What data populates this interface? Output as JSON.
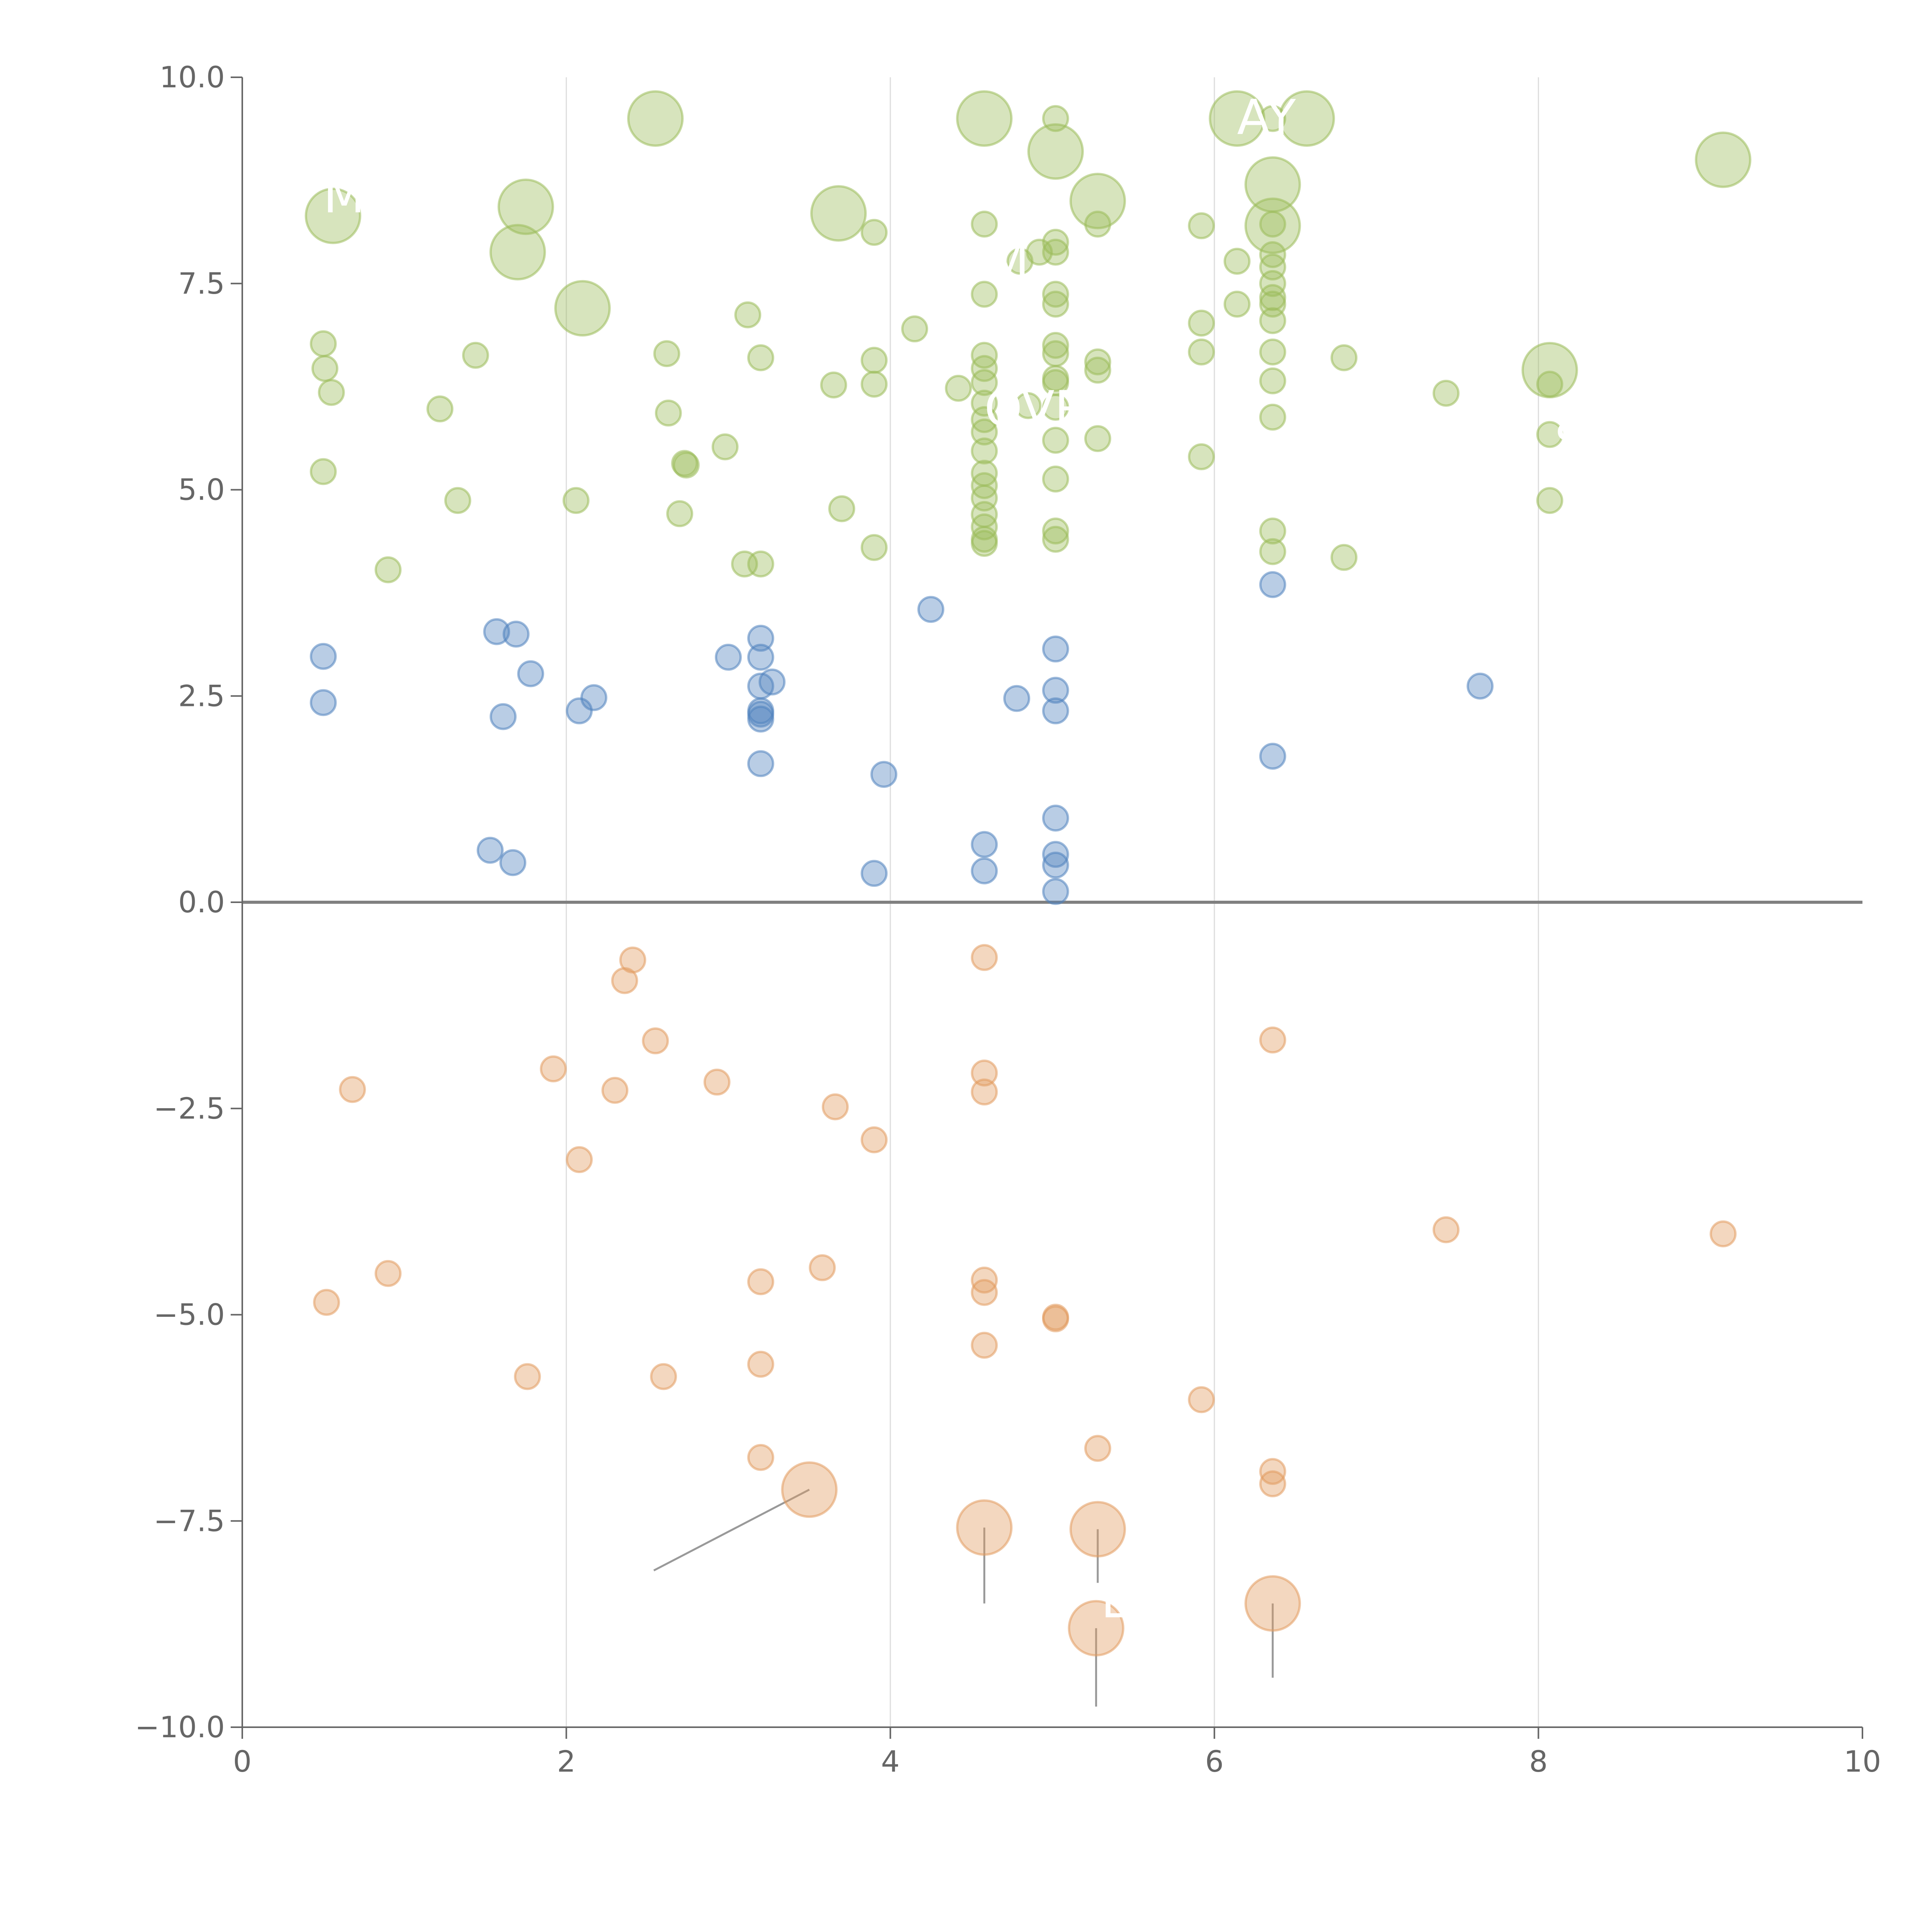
{
  "chart_data": {
    "type": "scatter",
    "title": "",
    "xlabel": "",
    "ylabel": "",
    "xlim": [
      0,
      10
    ],
    "ylim": [
      -10,
      10
    ],
    "x_ticks": [
      "0",
      "2",
      "4",
      "6",
      "8",
      "10"
    ],
    "y_ticks": [
      "10.0",
      "7.5",
      "5.0",
      "2.5",
      "0.0",
      "−2.5",
      "−5.0",
      "−7.5",
      "−10.0"
    ],
    "grid": "vertical lines at x = 2, 4, 6, 8",
    "legend": "none",
    "colors": {
      "green": "#9BBB59",
      "blue": "#4F81BD",
      "orange": "#E19A5E",
      "axis": "#666666",
      "zero_line": "#808080",
      "grid": "#DDDDDD"
    },
    "series": [
      {
        "name": "green",
        "points": [
          {
            "x": 0.56,
            "y": 8.32,
            "r": 22
          },
          {
            "x": 1.75,
            "y": 8.43,
            "r": 22
          },
          {
            "x": 1.7,
            "y": 7.88,
            "r": 22
          },
          {
            "x": 2.1,
            "y": 7.2,
            "r": 22
          },
          {
            "x": 2.55,
            "y": 9.5,
            "r": 22
          },
          {
            "x": 3.68,
            "y": 8.35,
            "r": 22
          },
          {
            "x": 4.58,
            "y": 9.5,
            "r": 22
          },
          {
            "x": 5.02,
            "y": 9.1,
            "r": 22
          },
          {
            "x": 5.28,
            "y": 8.5,
            "r": 22
          },
          {
            "x": 6.14,
            "y": 9.5,
            "r": 22
          },
          {
            "x": 6.57,
            "y": 9.5,
            "r": 22
          },
          {
            "x": 6.36,
            "y": 8.7,
            "r": 22
          },
          {
            "x": 6.36,
            "y": 8.2,
            "r": 22
          },
          {
            "x": 8.07,
            "y": 6.45,
            "r": 22
          },
          {
            "x": 9.14,
            "y": 9.0,
            "r": 22
          },
          {
            "x": 0.5,
            "y": 6.77,
            "r": 10
          },
          {
            "x": 0.51,
            "y": 6.47,
            "r": 10
          },
          {
            "x": 0.55,
            "y": 6.18,
            "r": 10
          },
          {
            "x": 0.5,
            "y": 5.22,
            "r": 10
          },
          {
            "x": 0.9,
            "y": 4.03,
            "r": 10
          },
          {
            "x": 1.22,
            "y": 5.98,
            "r": 10
          },
          {
            "x": 1.44,
            "y": 6.63,
            "r": 10
          },
          {
            "x": 1.33,
            "y": 4.87,
            "r": 10
          },
          {
            "x": 2.06,
            "y": 4.87,
            "r": 10
          },
          {
            "x": 2.62,
            "y": 6.65,
            "r": 10
          },
          {
            "x": 2.63,
            "y": 5.93,
            "r": 10
          },
          {
            "x": 2.73,
            "y": 5.32,
            "r": 10
          },
          {
            "x": 2.74,
            "y": 5.3,
            "r": 10
          },
          {
            "x": 2.7,
            "y": 4.71,
            "r": 10
          },
          {
            "x": 2.98,
            "y": 5.52,
            "r": 10
          },
          {
            "x": 3.12,
            "y": 7.12,
            "r": 10
          },
          {
            "x": 3.2,
            "y": 6.6,
            "r": 10
          },
          {
            "x": 3.1,
            "y": 4.1,
            "r": 10
          },
          {
            "x": 3.2,
            "y": 4.1,
            "r": 10
          },
          {
            "x": 3.65,
            "y": 6.27,
            "r": 10
          },
          {
            "x": 3.7,
            "y": 4.77,
            "r": 10
          },
          {
            "x": 3.9,
            "y": 8.12,
            "r": 10
          },
          {
            "x": 3.9,
            "y": 6.57,
            "r": 10
          },
          {
            "x": 3.9,
            "y": 6.28,
            "r": 10
          },
          {
            "x": 3.9,
            "y": 4.3,
            "r": 10
          },
          {
            "x": 4.15,
            "y": 6.95,
            "r": 10
          },
          {
            "x": 4.42,
            "y": 6.23,
            "r": 10
          },
          {
            "x": 4.58,
            "y": 8.22,
            "r": 10
          },
          {
            "x": 4.58,
            "y": 7.37,
            "r": 10
          },
          {
            "x": 4.58,
            "y": 6.63,
            "r": 10
          },
          {
            "x": 4.58,
            "y": 6.47,
            "r": 10
          },
          {
            "x": 4.58,
            "y": 6.3,
            "r": 10
          },
          {
            "x": 4.58,
            "y": 6.05,
            "r": 10
          },
          {
            "x": 4.58,
            "y": 5.85,
            "r": 10
          },
          {
            "x": 4.58,
            "y": 5.7,
            "r": 10
          },
          {
            "x": 4.58,
            "y": 5.47,
            "r": 10
          },
          {
            "x": 4.58,
            "y": 5.2,
            "r": 10
          },
          {
            "x": 4.58,
            "y": 5.05,
            "r": 10
          },
          {
            "x": 4.58,
            "y": 4.9,
            "r": 10
          },
          {
            "x": 4.58,
            "y": 4.7,
            "r": 10
          },
          {
            "x": 4.58,
            "y": 4.55,
            "r": 10
          },
          {
            "x": 4.58,
            "y": 4.4,
            "r": 10
          },
          {
            "x": 4.58,
            "y": 4.35,
            "r": 10
          },
          {
            "x": 4.8,
            "y": 7.77,
            "r": 10
          },
          {
            "x": 4.92,
            "y": 7.88,
            "r": 10
          },
          {
            "x": 4.85,
            "y": 6.02,
            "r": 10
          },
          {
            "x": 5.02,
            "y": 9.5,
            "r": 10
          },
          {
            "x": 5.02,
            "y": 8.0,
            "r": 10
          },
          {
            "x": 5.02,
            "y": 7.88,
            "r": 10
          },
          {
            "x": 5.02,
            "y": 7.37,
            "r": 10
          },
          {
            "x": 5.02,
            "y": 7.25,
            "r": 10
          },
          {
            "x": 5.02,
            "y": 6.75,
            "r": 10
          },
          {
            "x": 5.02,
            "y": 6.65,
            "r": 10
          },
          {
            "x": 5.02,
            "y": 6.35,
            "r": 10
          },
          {
            "x": 5.02,
            "y": 6.3,
            "r": 10
          },
          {
            "x": 5.02,
            "y": 6.0,
            "r": 10
          },
          {
            "x": 5.02,
            "y": 5.6,
            "r": 10
          },
          {
            "x": 5.02,
            "y": 5.13,
            "r": 10
          },
          {
            "x": 5.02,
            "y": 4.5,
            "r": 10
          },
          {
            "x": 5.02,
            "y": 4.4,
            "r": 10
          },
          {
            "x": 5.28,
            "y": 8.22,
            "r": 10
          },
          {
            "x": 5.28,
            "y": 6.55,
            "r": 10
          },
          {
            "x": 5.28,
            "y": 6.45,
            "r": 10
          },
          {
            "x": 5.28,
            "y": 5.62,
            "r": 10
          },
          {
            "x": 5.92,
            "y": 8.2,
            "r": 10
          },
          {
            "x": 5.92,
            "y": 7.02,
            "r": 10
          },
          {
            "x": 5.92,
            "y": 6.67,
            "r": 10
          },
          {
            "x": 5.92,
            "y": 5.4,
            "r": 10
          },
          {
            "x": 6.14,
            "y": 7.77,
            "r": 10
          },
          {
            "x": 6.14,
            "y": 7.25,
            "r": 10
          },
          {
            "x": 6.36,
            "y": 9.5,
            "r": 10
          },
          {
            "x": 6.36,
            "y": 8.22,
            "r": 10
          },
          {
            "x": 6.36,
            "y": 7.85,
            "r": 10
          },
          {
            "x": 6.36,
            "y": 7.7,
            "r": 10
          },
          {
            "x": 6.36,
            "y": 7.5,
            "r": 10
          },
          {
            "x": 6.36,
            "y": 7.33,
            "r": 10
          },
          {
            "x": 6.36,
            "y": 7.25,
            "r": 10
          },
          {
            "x": 6.36,
            "y": 7.05,
            "r": 10
          },
          {
            "x": 6.36,
            "y": 6.67,
            "r": 10
          },
          {
            "x": 6.36,
            "y": 6.32,
            "r": 10
          },
          {
            "x": 6.36,
            "y": 5.88,
            "r": 10
          },
          {
            "x": 6.36,
            "y": 4.5,
            "r": 10
          },
          {
            "x": 6.36,
            "y": 4.25,
            "r": 10
          },
          {
            "x": 6.8,
            "y": 6.6,
            "r": 10
          },
          {
            "x": 6.8,
            "y": 4.18,
            "r": 10
          },
          {
            "x": 7.43,
            "y": 6.17,
            "r": 10
          },
          {
            "x": 8.07,
            "y": 6.28,
            "r": 10
          },
          {
            "x": 8.07,
            "y": 5.67,
            "r": 10
          },
          {
            "x": 8.07,
            "y": 4.87,
            "r": 10
          }
        ]
      },
      {
        "name": "blue",
        "points": [
          {
            "x": 0.5,
            "y": 2.98,
            "r": 10
          },
          {
            "x": 0.5,
            "y": 2.42,
            "r": 10
          },
          {
            "x": 1.57,
            "y": 3.28,
            "r": 10
          },
          {
            "x": 1.69,
            "y": 3.25,
            "r": 10
          },
          {
            "x": 1.78,
            "y": 2.77,
            "r": 10
          },
          {
            "x": 1.61,
            "y": 2.25,
            "r": 10
          },
          {
            "x": 2.08,
            "y": 2.32,
            "r": 10
          },
          {
            "x": 2.17,
            "y": 2.48,
            "r": 10
          },
          {
            "x": 1.53,
            "y": 0.63,
            "r": 10
          },
          {
            "x": 1.67,
            "y": 0.48,
            "r": 10
          },
          {
            "x": 3.0,
            "y": 2.97,
            "r": 10
          },
          {
            "x": 3.2,
            "y": 3.2,
            "r": 10
          },
          {
            "x": 3.2,
            "y": 2.97,
            "r": 10
          },
          {
            "x": 3.2,
            "y": 2.62,
            "r": 10
          },
          {
            "x": 3.27,
            "y": 2.67,
            "r": 10
          },
          {
            "x": 3.2,
            "y": 2.32,
            "r": 10
          },
          {
            "x": 3.2,
            "y": 2.28,
            "r": 10
          },
          {
            "x": 3.2,
            "y": 2.22,
            "r": 10
          },
          {
            "x": 3.2,
            "y": 1.68,
            "r": 10
          },
          {
            "x": 3.9,
            "y": 0.35,
            "r": 10
          },
          {
            "x": 3.96,
            "y": 1.55,
            "r": 10
          },
          {
            "x": 4.25,
            "y": 3.55,
            "r": 10
          },
          {
            "x": 4.58,
            "y": 0.7,
            "r": 10
          },
          {
            "x": 4.58,
            "y": 0.38,
            "r": 10
          },
          {
            "x": 4.78,
            "y": 2.47,
            "r": 10
          },
          {
            "x": 5.02,
            "y": 3.07,
            "r": 10
          },
          {
            "x": 5.02,
            "y": 2.57,
            "r": 10
          },
          {
            "x": 5.02,
            "y": 2.32,
            "r": 10
          },
          {
            "x": 5.02,
            "y": 1.02,
            "r": 10
          },
          {
            "x": 5.02,
            "y": 0.58,
            "r": 10
          },
          {
            "x": 5.02,
            "y": 0.45,
            "r": 10
          },
          {
            "x": 5.02,
            "y": 0.13,
            "r": 10
          },
          {
            "x": 6.36,
            "y": 3.85,
            "r": 10
          },
          {
            "x": 6.36,
            "y": 1.77,
            "r": 10
          },
          {
            "x": 7.64,
            "y": 2.62,
            "r": 10
          }
        ]
      },
      {
        "name": "orange",
        "points": [
          {
            "x": 0.68,
            "y": -2.27,
            "r": 10
          },
          {
            "x": 0.9,
            "y": -4.5,
            "r": 10
          },
          {
            "x": 0.52,
            "y": -4.85,
            "r": 10
          },
          {
            "x": 1.76,
            "y": -5.75,
            "r": 10
          },
          {
            "x": 1.92,
            "y": -2.02,
            "r": 10
          },
          {
            "x": 2.3,
            "y": -2.28,
            "r": 10
          },
          {
            "x": 2.36,
            "y": -0.95,
            "r": 10
          },
          {
            "x": 2.41,
            "y": -0.7,
            "r": 10
          },
          {
            "x": 2.55,
            "y": -1.68,
            "r": 10
          },
          {
            "x": 2.08,
            "y": -3.12,
            "r": 10
          },
          {
            "x": 2.6,
            "y": -5.75,
            "r": 10
          },
          {
            "x": 2.93,
            "y": -2.18,
            "r": 10
          },
          {
            "x": 3.2,
            "y": -4.6,
            "r": 10
          },
          {
            "x": 3.2,
            "y": -5.6,
            "r": 10
          },
          {
            "x": 3.2,
            "y": -6.73,
            "r": 10
          },
          {
            "x": 3.5,
            "y": -7.12,
            "r": 22
          },
          {
            "x": 3.58,
            "y": -4.43,
            "r": 10
          },
          {
            "x": 3.66,
            "y": -2.48,
            "r": 10
          },
          {
            "x": 3.9,
            "y": -2.88,
            "r": 10
          },
          {
            "x": 4.58,
            "y": -0.67,
            "r": 10
          },
          {
            "x": 4.58,
            "y": -2.07,
            "r": 10
          },
          {
            "x": 4.58,
            "y": -2.3,
            "r": 10
          },
          {
            "x": 4.58,
            "y": -4.58,
            "r": 10
          },
          {
            "x": 4.58,
            "y": -4.73,
            "r": 10
          },
          {
            "x": 4.58,
            "y": -5.37,
            "r": 10
          },
          {
            "x": 4.58,
            "y": -7.58,
            "r": 22
          },
          {
            "x": 5.02,
            "y": -5.03,
            "r": 10
          },
          {
            "x": 5.02,
            "y": -5.05,
            "r": 10
          },
          {
            "x": 5.28,
            "y": -6.62,
            "r": 10
          },
          {
            "x": 5.28,
            "y": -7.6,
            "r": 22
          },
          {
            "x": 5.27,
            "y": -8.8,
            "r": 22
          },
          {
            "x": 5.92,
            "y": -6.03,
            "r": 10
          },
          {
            "x": 6.36,
            "y": -1.67,
            "r": 10
          },
          {
            "x": 6.36,
            "y": -6.9,
            "r": 10
          },
          {
            "x": 6.36,
            "y": -7.05,
            "r": 10
          },
          {
            "x": 6.36,
            "y": -8.5,
            "r": 22
          },
          {
            "x": 7.43,
            "y": -3.97,
            "r": 10
          },
          {
            "x": 9.14,
            "y": -4.02,
            "r": 10
          }
        ]
      }
    ],
    "connector_lines": [
      {
        "from": [
          3.5,
          -7.12
        ],
        "to": [
          2.54,
          -8.1
        ]
      },
      {
        "from": [
          4.58,
          -7.58
        ],
        "to": [
          4.58,
          -8.5
        ]
      },
      {
        "from": [
          5.28,
          -7.6
        ],
        "to": [
          5.28,
          -8.25
        ]
      },
      {
        "from": [
          5.27,
          -8.8
        ],
        "to": [
          5.27,
          -9.75
        ]
      },
      {
        "from": [
          6.36,
          -8.5
        ],
        "to": [
          6.36,
          -9.4
        ]
      }
    ],
    "annotations": [
      {
        "text": "MI",
        "x": 0.5,
        "y": 8.55
      },
      {
        "text": "AY",
        "x": 6.14,
        "y": 9.5
      },
      {
        "text": "M",
        "x": 4.6,
        "y": 7.75
      },
      {
        "text": "OVR",
        "x": 4.58,
        "y": 5.97
      },
      {
        "text": "S",
        "x": 8.1,
        "y": 5.58
      },
      {
        "text": "L",
        "x": 5.3,
        "y": -8.48
      }
    ]
  }
}
